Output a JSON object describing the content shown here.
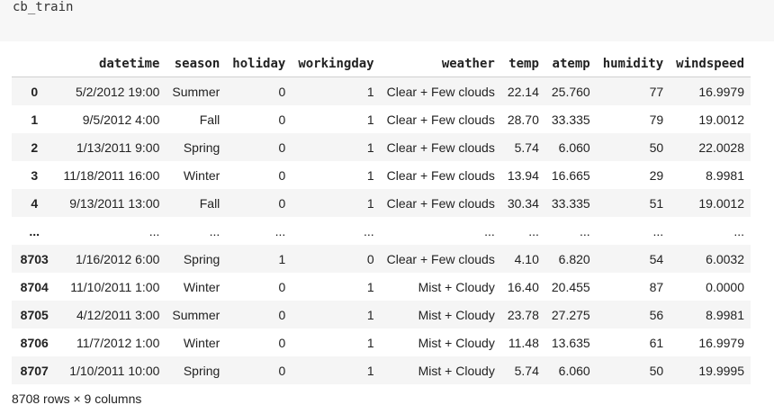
{
  "cell": {
    "code": "cb_train"
  },
  "table": {
    "columns": [
      "datetime",
      "season",
      "holiday",
      "workingday",
      "weather",
      "temp",
      "atemp",
      "humidity",
      "windspeed"
    ],
    "rows": [
      {
        "index": "0",
        "datetime": "5/2/2012 19:00",
        "season": "Summer",
        "holiday": "0",
        "workingday": "1",
        "weather": "Clear + Few clouds",
        "temp": "22.14",
        "atemp": "25.760",
        "humidity": "77",
        "windspeed": "16.9979"
      },
      {
        "index": "1",
        "datetime": "9/5/2012 4:00",
        "season": "Fall",
        "holiday": "0",
        "workingday": "1",
        "weather": "Clear + Few clouds",
        "temp": "28.70",
        "atemp": "33.335",
        "humidity": "79",
        "windspeed": "19.0012"
      },
      {
        "index": "2",
        "datetime": "1/13/2011 9:00",
        "season": "Spring",
        "holiday": "0",
        "workingday": "1",
        "weather": "Clear + Few clouds",
        "temp": "5.74",
        "atemp": "6.060",
        "humidity": "50",
        "windspeed": "22.0028"
      },
      {
        "index": "3",
        "datetime": "11/18/2011 16:00",
        "season": "Winter",
        "holiday": "0",
        "workingday": "1",
        "weather": "Clear + Few clouds",
        "temp": "13.94",
        "atemp": "16.665",
        "humidity": "29",
        "windspeed": "8.9981"
      },
      {
        "index": "4",
        "datetime": "9/13/2011 13:00",
        "season": "Fall",
        "holiday": "0",
        "workingday": "1",
        "weather": "Clear + Few clouds",
        "temp": "30.34",
        "atemp": "33.335",
        "humidity": "51",
        "windspeed": "19.0012"
      },
      {
        "index": "...",
        "datetime": "...",
        "season": "...",
        "holiday": "...",
        "workingday": "...",
        "weather": "...",
        "temp": "...",
        "atemp": "...",
        "humidity": "...",
        "windspeed": "..."
      },
      {
        "index": "8703",
        "datetime": "1/16/2012 6:00",
        "season": "Spring",
        "holiday": "1",
        "workingday": "0",
        "weather": "Clear + Few clouds",
        "temp": "4.10",
        "atemp": "6.820",
        "humidity": "54",
        "windspeed": "6.0032"
      },
      {
        "index": "8704",
        "datetime": "11/10/2011 1:00",
        "season": "Winter",
        "holiday": "0",
        "workingday": "1",
        "weather": "Mist + Cloudy",
        "temp": "16.40",
        "atemp": "20.455",
        "humidity": "87",
        "windspeed": "0.0000"
      },
      {
        "index": "8705",
        "datetime": "4/12/2011 3:00",
        "season": "Summer",
        "holiday": "0",
        "workingday": "1",
        "weather": "Mist + Cloudy",
        "temp": "23.78",
        "atemp": "27.275",
        "humidity": "56",
        "windspeed": "8.9981"
      },
      {
        "index": "8706",
        "datetime": "11/7/2012 1:00",
        "season": "Winter",
        "holiday": "0",
        "workingday": "1",
        "weather": "Mist + Cloudy",
        "temp": "11.48",
        "atemp": "13.635",
        "humidity": "61",
        "windspeed": "16.9979"
      },
      {
        "index": "8707",
        "datetime": "1/10/2011 10:00",
        "season": "Spring",
        "holiday": "0",
        "workingday": "1",
        "weather": "Mist + Cloudy",
        "temp": "5.74",
        "atemp": "6.060",
        "humidity": "50",
        "windspeed": "19.9995"
      }
    ]
  },
  "summary": "8708 rows × 9 columns"
}
